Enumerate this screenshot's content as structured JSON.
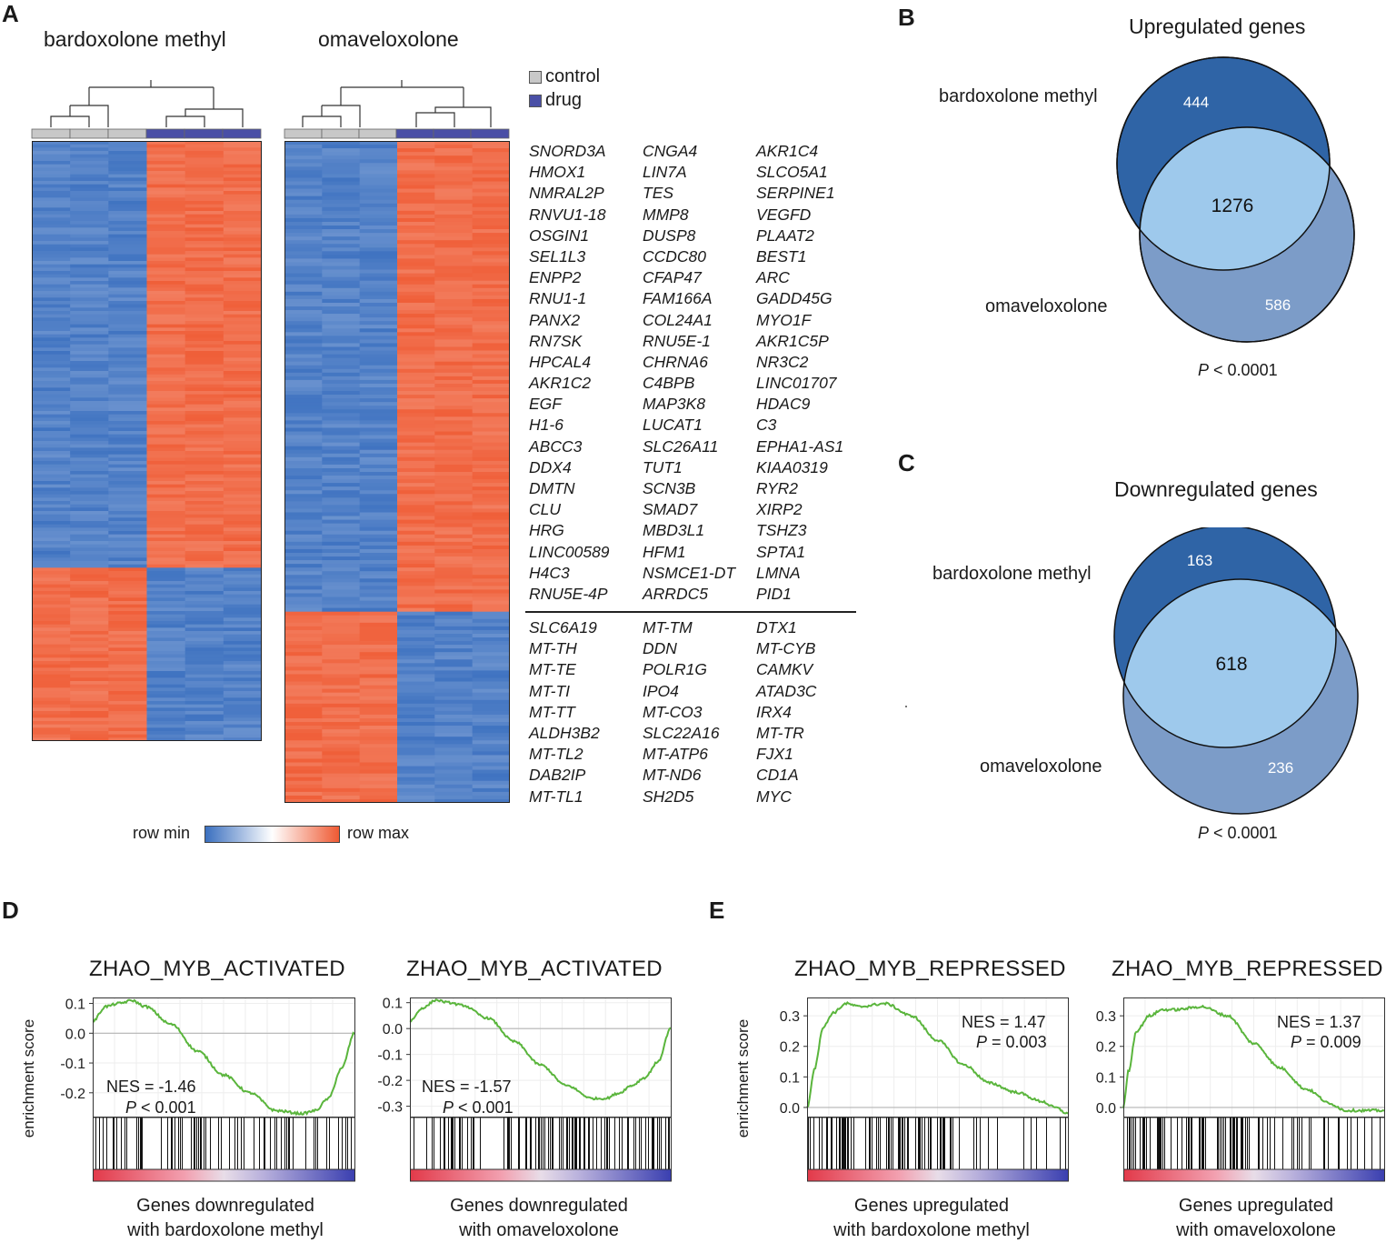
{
  "panels": {
    "a": "A",
    "b": "B",
    "c": "C",
    "d": "D",
    "e": "E"
  },
  "heatmap": {
    "title_left": "bardoxolone methyl",
    "title_right": "omaveloxolone",
    "legend_control": "control",
    "legend_drug": "drug",
    "scale_min": "row min",
    "scale_max": "row max",
    "colors": {
      "control": "#c8c8c8",
      "drug": "#4a4fa6",
      "low": "#3a6fbf",
      "mid": "#ffffff",
      "high": "#ef5a33"
    }
  },
  "genes_up": [
    [
      "SNORD3A",
      "CNGA4",
      "AKR1C4"
    ],
    [
      "HMOX1",
      "LIN7A",
      "SLCO5A1"
    ],
    [
      "NMRAL2P",
      "TES",
      "SERPINE1"
    ],
    [
      "RNVU1-18",
      "MMP8",
      "VEGFD"
    ],
    [
      "OSGIN1",
      "DUSP8",
      "PLAAT2"
    ],
    [
      "SEL1L3",
      "CCDC80",
      "BEST1"
    ],
    [
      "ENPP2",
      "CFAP47",
      "ARC"
    ],
    [
      "RNU1-1",
      "FAM166A",
      "GADD45G"
    ],
    [
      "PANX2",
      "COL24A1",
      "MYO1F"
    ],
    [
      "RN7SK",
      "RNU5E-1",
      "AKR1C5P"
    ],
    [
      "HPCAL4",
      "CHRNA6",
      "NR3C2"
    ],
    [
      "AKR1C2",
      "C4BPB",
      "LINC01707"
    ],
    [
      "EGF",
      "MAP3K8",
      "HDAC9"
    ],
    [
      "H1-6",
      "LUCAT1",
      "C3"
    ],
    [
      "ABCC3",
      "SLC26A11",
      "EPHA1-AS1"
    ],
    [
      "DDX4",
      "TUT1",
      "KIAA0319"
    ],
    [
      "DMTN",
      "SCN3B",
      "RYR2"
    ],
    [
      "CLU",
      "SMAD7",
      "XIRP2"
    ],
    [
      "HRG",
      "MBD3L1",
      "TSHZ3"
    ],
    [
      "LINC00589",
      "HFM1",
      "SPTA1"
    ],
    [
      "H4C3",
      "NSMCE1-DT",
      "LMNA"
    ],
    [
      "RNU5E-4P",
      "ARRDC5",
      "PID1"
    ]
  ],
  "genes_down": [
    [
      "SLC6A19",
      "MT-TM",
      "DTX1"
    ],
    [
      "MT-TH",
      "DDN",
      "MT-CYB"
    ],
    [
      "MT-TE",
      "POLR1G",
      "CAMKV"
    ],
    [
      "MT-TI",
      "IPO4",
      "ATAD3C"
    ],
    [
      "MT-TT",
      "MT-CO3",
      "IRX4"
    ],
    [
      "ALDH3B2",
      "SLC22A16",
      "MT-TR"
    ],
    [
      "MT-TL2",
      "MT-ATP6",
      "FJX1"
    ],
    [
      "DAB2IP",
      "MT-ND6",
      "CD1A"
    ],
    [
      "MT-TL1",
      "SH2D5",
      "MYC"
    ]
  ],
  "venn_up": {
    "title": "Upregulated genes",
    "label_a": "bardoxolone methyl",
    "label_b": "omaveloxolone",
    "only_a": "444",
    "both": "1276",
    "only_b": "586",
    "p_label": "P",
    "p_value": " < 0.0001"
  },
  "venn_down": {
    "title": "Downregulated genes",
    "label_a": "bardoxolone methyl",
    "label_b": "omaveloxolone",
    "only_a": "163",
    "both": "618",
    "only_b": "236",
    "p_label": "P",
    "p_value": " < 0.0001"
  },
  "gsea": [
    {
      "title": "ZHAO_MYB_ACTIVATED",
      "ylabel": "enrichment score",
      "nes": "NES = -1.46",
      "p_label": "P",
      "p_value": " < 0.001",
      "caption_1": "Genes downregulated",
      "caption_2": "with bardoxolone methyl",
      "ticks": [
        "0.1",
        "0.0",
        "-0.1",
        "-0.2"
      ]
    },
    {
      "title": "ZHAO_MYB_ACTIVATED",
      "ylabel": "",
      "nes": "NES = -1.57",
      "p_label": "P",
      "p_value": " < 0.001",
      "caption_1": "Genes downregulated",
      "caption_2": "with omaveloxolone",
      "ticks": [
        "0.1",
        "0.0",
        "-0.1",
        "-0.2",
        "-0.3"
      ]
    },
    {
      "title": "ZHAO_MYB_REPRESSED",
      "ylabel": "enrichment score",
      "nes": "NES = 1.47",
      "p_label": "P",
      "p_value": " = 0.003",
      "caption_1": "Genes upregulated",
      "caption_2": "with bardoxolone methyl",
      "ticks": [
        "0.3",
        "0.2",
        "0.1",
        "0.0"
      ]
    },
    {
      "title": "ZHAO_MYB_REPRESSED",
      "ylabel": "",
      "nes": "NES = 1.37",
      "p_label": "P",
      "p_value": " = 0.009",
      "caption_1": "Genes upregulated",
      "caption_2": "with omaveloxolone",
      "ticks": [
        "0.3",
        "0.2",
        "0.1",
        "0.0"
      ]
    }
  ],
  "chart_data": [
    {
      "type": "line",
      "title": "ZHAO_MYB_ACTIVATED",
      "ylabel": "enrichment score",
      "xlabel": "Genes downregulated with bardoxolone methyl",
      "ylim": [
        -0.28,
        0.12
      ],
      "y_ticks": [
        0.1,
        0.0,
        -0.1,
        -0.2
      ],
      "x": [
        0,
        0.05,
        0.1,
        0.15,
        0.2,
        0.3,
        0.4,
        0.5,
        0.6,
        0.7,
        0.8,
        0.85,
        0.9,
        0.95,
        1.0
      ],
      "y": [
        0.04,
        0.09,
        0.1,
        0.11,
        0.09,
        0.03,
        -0.06,
        -0.14,
        -0.2,
        -0.26,
        -0.27,
        -0.26,
        -0.22,
        -0.12,
        0.0
      ]
    },
    {
      "type": "line",
      "title": "ZHAO_MYB_ACTIVATED",
      "ylabel": "",
      "xlabel": "Genes downregulated with omaveloxolone",
      "ylim": [
        -0.34,
        0.12
      ],
      "y_ticks": [
        0.1,
        0.0,
        -0.1,
        -0.2,
        -0.3
      ],
      "x": [
        0,
        0.05,
        0.1,
        0.15,
        0.2,
        0.3,
        0.4,
        0.5,
        0.6,
        0.7,
        0.75,
        0.8,
        0.85,
        0.9,
        0.95,
        1.0
      ],
      "y": [
        0.03,
        0.08,
        0.11,
        0.1,
        0.09,
        0.04,
        -0.05,
        -0.14,
        -0.22,
        -0.27,
        -0.27,
        -0.25,
        -0.22,
        -0.19,
        -0.13,
        0.0
      ]
    },
    {
      "type": "line",
      "title": "ZHAO_MYB_REPRESSED",
      "ylabel": "enrichment score",
      "xlabel": "Genes upregulated with bardoxolone methyl",
      "ylim": [
        -0.03,
        0.36
      ],
      "y_ticks": [
        0.3,
        0.2,
        0.1,
        0.0
      ],
      "x": [
        0,
        0.03,
        0.06,
        0.1,
        0.15,
        0.2,
        0.3,
        0.4,
        0.5,
        0.6,
        0.7,
        0.8,
        0.9,
        0.95,
        1.0
      ],
      "y": [
        0.0,
        0.13,
        0.26,
        0.31,
        0.34,
        0.33,
        0.34,
        0.3,
        0.22,
        0.14,
        0.08,
        0.05,
        0.02,
        0.0,
        -0.02
      ]
    },
    {
      "type": "line",
      "title": "ZHAO_MYB_REPRESSED",
      "ylabel": "",
      "xlabel": "Genes upregulated with omaveloxolone",
      "ylim": [
        -0.03,
        0.36
      ],
      "y_ticks": [
        0.3,
        0.2,
        0.1,
        0.0
      ],
      "x": [
        0,
        0.02,
        0.05,
        0.1,
        0.15,
        0.2,
        0.3,
        0.4,
        0.5,
        0.6,
        0.7,
        0.8,
        0.85,
        0.9,
        1.0
      ],
      "y": [
        0.0,
        0.12,
        0.25,
        0.3,
        0.32,
        0.32,
        0.33,
        0.3,
        0.21,
        0.13,
        0.06,
        0.01,
        -0.01,
        -0.01,
        -0.01
      ]
    }
  ]
}
